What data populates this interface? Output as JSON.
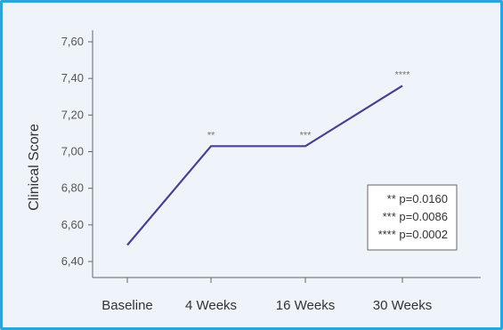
{
  "chart_data": {
    "type": "line",
    "categories": [
      "Baseline",
      "4 Weeks",
      "16 Weeks",
      "30 Weeks"
    ],
    "values": [
      6.49,
      7.03,
      7.03,
      7.36
    ],
    "significance": [
      "",
      "**",
      "***",
      "****"
    ],
    "ylabel": "Clinical Score",
    "xlabel": "",
    "ylim": [
      6.35,
      7.65
    ],
    "yticks": [
      6.4,
      6.6,
      6.8,
      7.0,
      7.2,
      7.4,
      7.6
    ],
    "ytick_labels": [
      "6,40",
      "6,60",
      "6,80",
      "7,00",
      "7,20",
      "7,40",
      "7,60"
    ],
    "legend": [
      "** p=0.0160",
      "*** p=0.0086",
      "**** p=0.0002"
    ],
    "legend_placement": "bottom-right",
    "grid": false,
    "line_color": "#4b3f8f"
  }
}
